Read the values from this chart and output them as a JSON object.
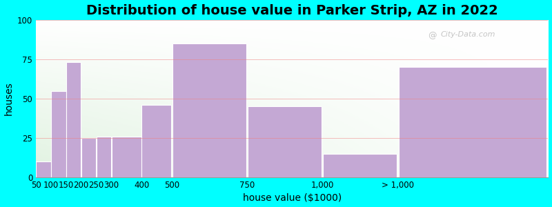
{
  "title": "Distribution of house value in Parker Strip, AZ in 2022",
  "xlabel": "house value ($1000)",
  "ylabel": "houses",
  "bar_labels": [
    "50",
    "100",
    "150",
    "200",
    "250",
    "300",
    "400",
    "500",
    "750",
    "1,000",
    "> 1,000"
  ],
  "bar_heights": [
    10,
    55,
    73,
    25,
    26,
    26,
    46,
    85,
    45,
    15,
    70
  ],
  "bar_color": "#C4A8D4",
  "bar_edge_color": "#C4A8D4",
  "ylim": [
    0,
    100
  ],
  "yticks": [
    0,
    25,
    50,
    75,
    100
  ],
  "bg_outer": "#00FFFF",
  "bg_inner_top": "#FFFFFF",
  "bg_inner_bottom_left": "#D8EDD0",
  "title_fontsize": 14,
  "axis_label_fontsize": 10,
  "tick_fontsize": 8.5,
  "watermark_text": "City-Data.com",
  "bar_left_edges": [
    50,
    100,
    150,
    200,
    250,
    300,
    400,
    500,
    750,
    1000,
    1250
  ],
  "bar_widths": [
    50,
    50,
    50,
    50,
    50,
    100,
    100,
    250,
    250,
    250,
    500
  ]
}
